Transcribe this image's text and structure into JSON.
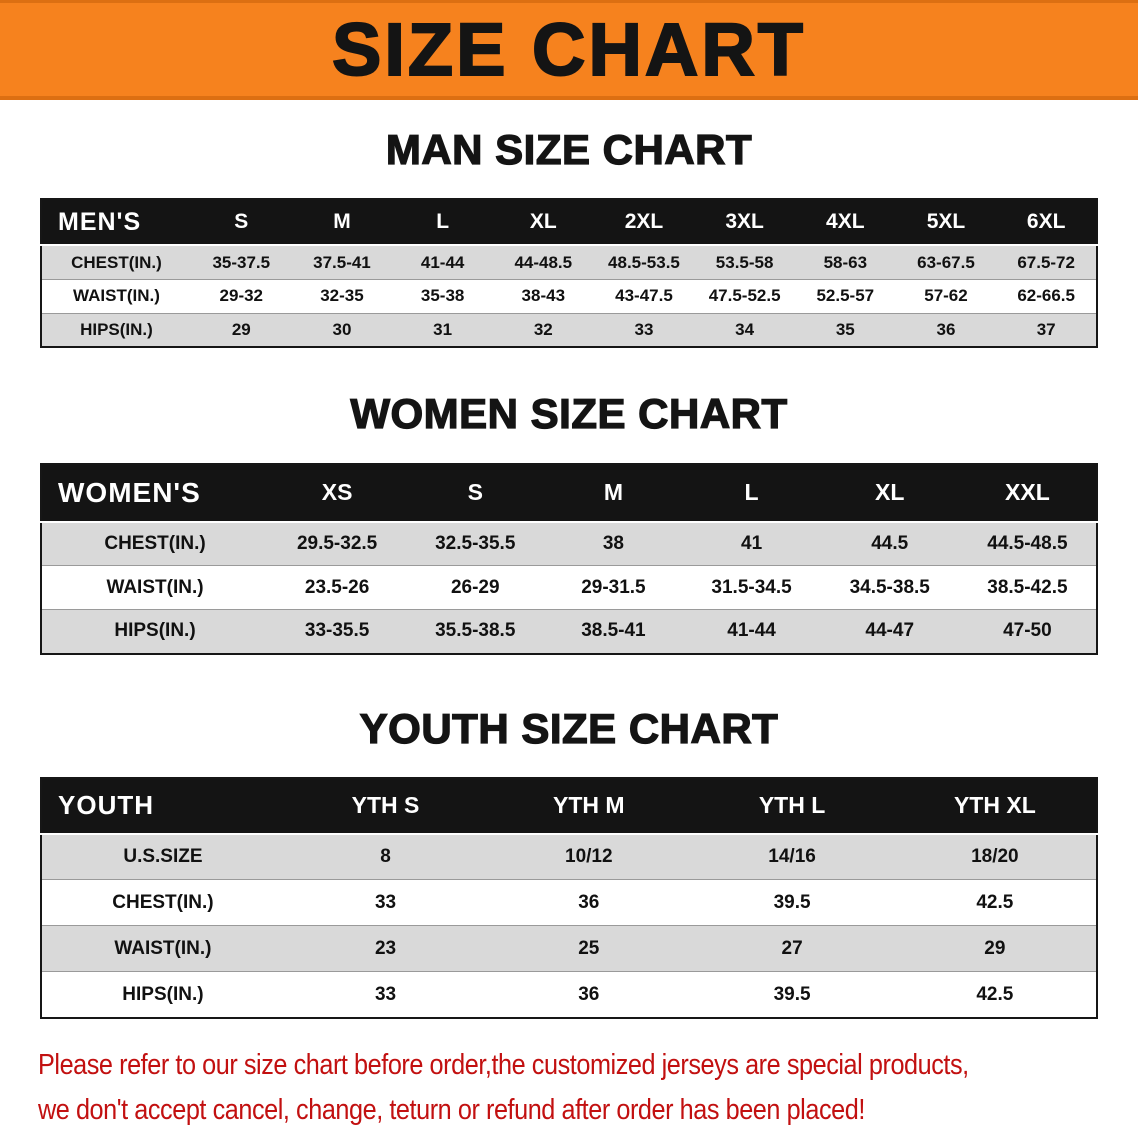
{
  "banner": {
    "title": "SIZE CHART"
  },
  "sections": {
    "men": {
      "title": "MAN SIZE CHART",
      "header_label": "MEN'S",
      "columns": [
        "S",
        "M",
        "L",
        "XL",
        "2XL",
        "3XL",
        "4XL",
        "5XL",
        "6XL"
      ],
      "rows": [
        {
          "label": "CHEST(IN.)",
          "values": [
            "35-37.5",
            "37.5-41",
            "41-44",
            "44-48.5",
            "48.5-53.5",
            "53.5-58",
            "58-63",
            "63-67.5",
            "67.5-72"
          ]
        },
        {
          "label": "WAIST(IN.)",
          "values": [
            "29-32",
            "32-35",
            "35-38",
            "38-43",
            "43-47.5",
            "47.5-52.5",
            "52.5-57",
            "57-62",
            "62-66.5"
          ]
        },
        {
          "label": "HIPS(IN.)",
          "values": [
            "29",
            "30",
            "31",
            "32",
            "33",
            "34",
            "35",
            "36",
            "37"
          ]
        }
      ]
    },
    "women": {
      "title": "WOMEN SIZE CHART",
      "header_label": "WOMEN'S",
      "columns": [
        "XS",
        "S",
        "M",
        "L",
        "XL",
        "XXL"
      ],
      "rows": [
        {
          "label": "CHEST(IN.)",
          "values": [
            "29.5-32.5",
            "32.5-35.5",
            "38",
            "41",
            "44.5",
            "44.5-48.5"
          ]
        },
        {
          "label": "WAIST(IN.)",
          "values": [
            "23.5-26",
            "26-29",
            "29-31.5",
            "31.5-34.5",
            "34.5-38.5",
            "38.5-42.5"
          ]
        },
        {
          "label": "HIPS(IN.)",
          "values": [
            "33-35.5",
            "35.5-38.5",
            "38.5-41",
            "41-44",
            "44-47",
            "47-50"
          ]
        }
      ]
    },
    "youth": {
      "title": "YOUTH SIZE CHART",
      "header_label": "YOUTH",
      "columns": [
        "YTH S",
        "YTH M",
        "YTH L",
        "YTH XL"
      ],
      "rows": [
        {
          "label": "U.S.SIZE",
          "values": [
            "8",
            "10/12",
            "14/16",
            "18/20"
          ]
        },
        {
          "label": "CHEST(IN.)",
          "values": [
            "33",
            "36",
            "39.5",
            "42.5"
          ]
        },
        {
          "label": "WAIST(IN.)",
          "values": [
            "23",
            "25",
            "27",
            "29"
          ]
        },
        {
          "label": "HIPS(IN.)",
          "values": [
            "33",
            "36",
            "39.5",
            "42.5"
          ]
        }
      ]
    }
  },
  "disclaimer": {
    "line1": "Please refer to our size chart before order,the customized jerseys are special products,",
    "line2": "we don't accept cancel, change, teturn or refund after order has been placed!"
  },
  "colors": {
    "banner-bg": "#F6821E",
    "banner-text": "#141414",
    "table-header-bg": "#141414",
    "table-header-text": "#FFFFFF",
    "row-stripe": "#D9D9D9",
    "disclaimer-red": "#C21010"
  }
}
